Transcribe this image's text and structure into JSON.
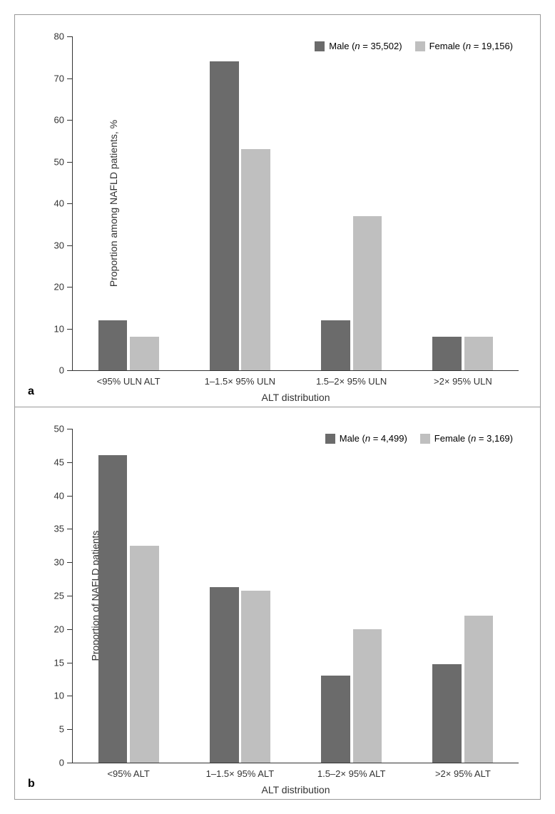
{
  "figure": {
    "panel_a": {
      "label": "a",
      "type": "bar",
      "y_axis_title": "Proportion among NAFLD patients, %",
      "x_axis_title": "ALT distribution",
      "ylim": [
        0,
        80
      ],
      "ytick_step": 10,
      "categories": [
        "<95% ULN ALT",
        "1–1.5× 95% ULN",
        "1.5–2× 95% ULN",
        ">2× 95% ULN"
      ],
      "series": [
        {
          "name": "Male",
          "n": "35,502",
          "color": "#6b6b6b",
          "values": [
            12,
            74,
            12,
            8
          ]
        },
        {
          "name": "Female",
          "n": "19,156",
          "color": "#bfbfbf",
          "values": [
            8,
            53,
            37,
            8
          ]
        }
      ],
      "bar_width_pct": 6.5,
      "group_gap_pct": 0.6,
      "axis_color": "#333333",
      "background_color": "#ffffff",
      "label_fontsize": 13,
      "title_fontsize": 14
    },
    "panel_b": {
      "label": "b",
      "type": "bar",
      "y_axis_title": "Proportion of NAFLD patients",
      "x_axis_title": "ALT distribution",
      "ylim": [
        0,
        50
      ],
      "ytick_step": 5,
      "categories": [
        "<95% ALT",
        "1–1.5× 95% ALT",
        "1.5–2× 95% ALT",
        ">2× 95% ALT"
      ],
      "series": [
        {
          "name": "Male",
          "n": "4,499",
          "color": "#6b6b6b",
          "values": [
            46,
            26.3,
            13,
            14.7
          ]
        },
        {
          "name": "Female",
          "n": "3,169",
          "color": "#bfbfbf",
          "values": [
            32.5,
            25.8,
            20,
            22
          ]
        }
      ],
      "bar_width_pct": 6.5,
      "group_gap_pct": 0.6,
      "axis_color": "#333333",
      "background_color": "#ffffff",
      "label_fontsize": 13,
      "title_fontsize": 14
    }
  }
}
